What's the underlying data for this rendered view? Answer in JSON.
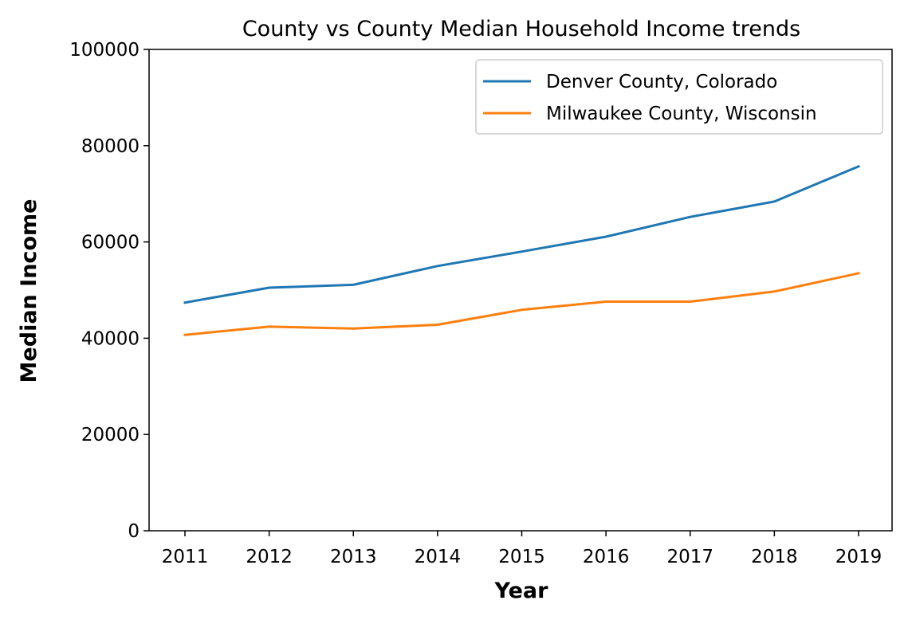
{
  "chart_data": {
    "type": "line",
    "title": "County vs County Median Household Income trends",
    "xlabel": "Year",
    "ylabel": "Median Income",
    "x": [
      2011,
      2012,
      2013,
      2014,
      2015,
      2016,
      2017,
      2018,
      2019
    ],
    "x_tick_labels": [
      "2011",
      "2012",
      "2013",
      "2014",
      "2015",
      "2016",
      "2017",
      "2018",
      "2019"
    ],
    "ylim": [
      0,
      100000
    ],
    "y_ticks": [
      0,
      20000,
      40000,
      60000,
      80000,
      100000
    ],
    "y_tick_labels": [
      "0",
      "20000",
      "40000",
      "60000",
      "80000",
      "100000"
    ],
    "grid": false,
    "legend_position": "top-right",
    "series": [
      {
        "name": "Denver County, Colorado",
        "color": "#1f77b4",
        "values": [
          47400,
          50500,
          51100,
          55000,
          58000,
          61100,
          65200,
          68400,
          75700
        ]
      },
      {
        "name": "Milwaukee County, Wisconsin",
        "color": "#ff7f0e",
        "values": [
          40700,
          42400,
          42000,
          42800,
          45900,
          47600,
          47600,
          49700,
          53500
        ]
      }
    ]
  }
}
